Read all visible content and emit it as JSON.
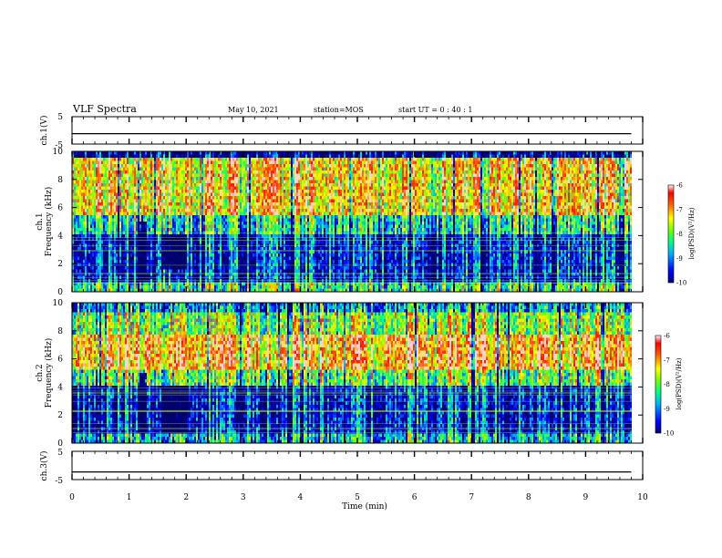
{
  "header": {
    "title": "VLF Spectra",
    "date": "May 10, 2021",
    "station": "station=MOS",
    "start": "start  UT =   0 : 40 : 1"
  },
  "chart_data": [
    {
      "type": "line",
      "ylabel": "ch.1(V)",
      "xlim": [
        0,
        10
      ],
      "ylim": [
        -5,
        5
      ],
      "yticks": [
        "5",
        "-5"
      ],
      "series": [
        {
          "x": [
            0,
            9.8
          ],
          "values": [
            -1.2,
            -1.2
          ]
        }
      ]
    },
    {
      "type": "heatmap",
      "ylabel": "ch.1\nFrequency (kHz)",
      "xlim": [
        0,
        10
      ],
      "ylim": [
        0,
        10
      ],
      "yticks": [
        "0",
        "2",
        "4",
        "6",
        "8",
        "10"
      ],
      "colorbar": {
        "label": "log(PSD)(V²/Hz)",
        "range": [
          -10,
          -6
        ],
        "ticks": [
          "-6",
          "-7",
          "-8",
          "-9",
          "-10"
        ]
      }
    },
    {
      "type": "heatmap",
      "ylabel": "ch.2\nFrequency (kHz)",
      "xlim": [
        0,
        10
      ],
      "ylim": [
        0,
        10
      ],
      "yticks": [
        "0",
        "2",
        "4",
        "6",
        "8",
        "10"
      ],
      "colorbar": {
        "label": "log(PSD)(V²/Hz)",
        "range": [
          -10,
          -6
        ],
        "ticks": [
          "-6",
          "-7",
          "-8",
          "-9",
          "-10"
        ]
      }
    },
    {
      "type": "line",
      "ylabel": "ch.3(V)",
      "xlabel": "Time  (min)",
      "xlim": [
        0,
        10
      ],
      "ylim": [
        -5,
        5
      ],
      "yticks": [
        "5",
        "-5"
      ],
      "xticks": [
        "0",
        "1",
        "2",
        "3",
        "4",
        "5",
        "6",
        "7",
        "8",
        "9",
        "10"
      ],
      "series": [
        {
          "x": [
            0,
            9.8
          ],
          "values": [
            -2.3,
            -2.3
          ]
        }
      ]
    }
  ],
  "colors": {
    "frame": "#000000",
    "background": "#ffffff"
  }
}
